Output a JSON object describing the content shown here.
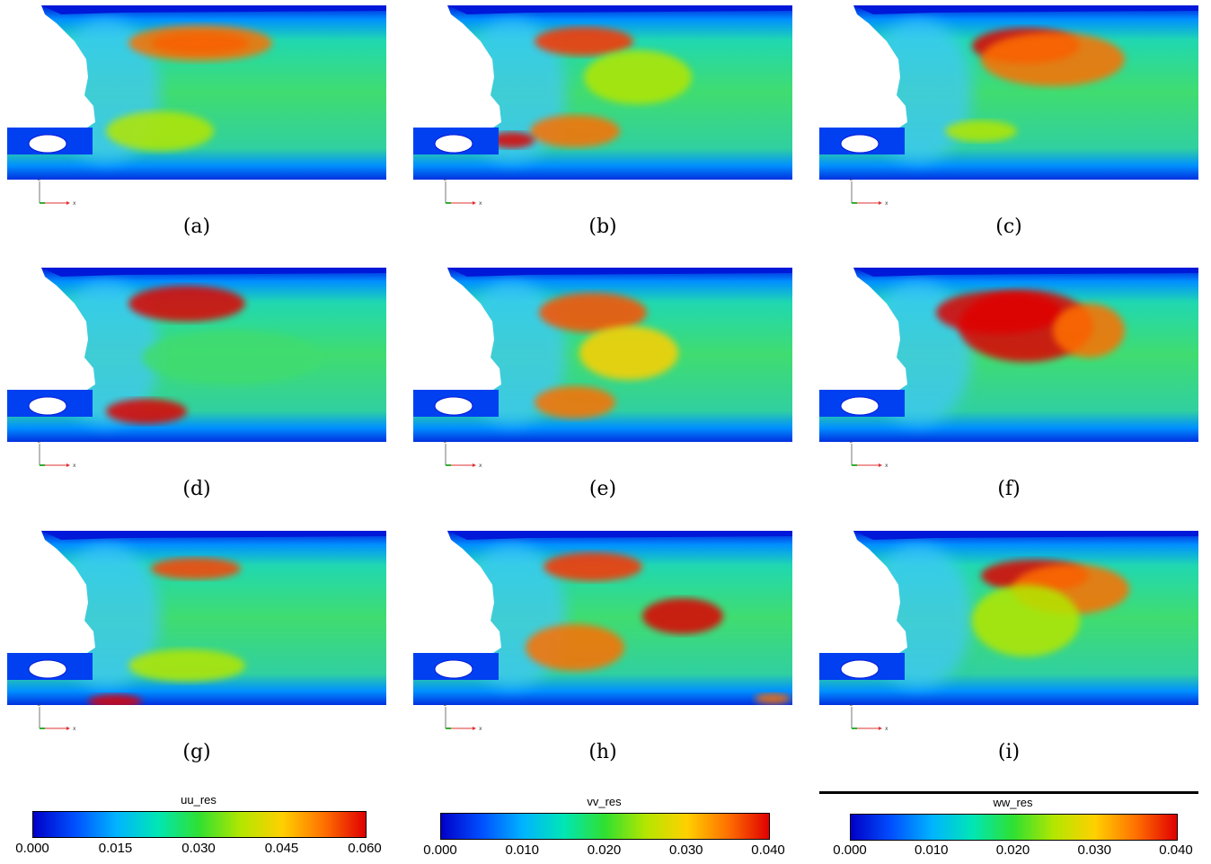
{
  "panels": [
    {
      "id": "a",
      "caption": "(a)"
    },
    {
      "id": "b",
      "caption": "(b)"
    },
    {
      "id": "c",
      "caption": "(c)"
    },
    {
      "id": "d",
      "caption": "(d)"
    },
    {
      "id": "e",
      "caption": "(e)"
    },
    {
      "id": "f",
      "caption": "(f)"
    },
    {
      "id": "g",
      "caption": "(g)"
    },
    {
      "id": "h",
      "caption": "(h)"
    },
    {
      "id": "i",
      "caption": "(i)"
    }
  ],
  "axes": {
    "x_label": "x",
    "z_label": "z"
  },
  "colorbars": [
    {
      "title": "uu_res",
      "ticks": [
        "0.000",
        "0.015",
        "0.030",
        "0.045",
        "0.060"
      ]
    },
    {
      "title": "vv_res",
      "ticks": [
        "0.000",
        "0.010",
        "0.020",
        "0.030",
        "0.040"
      ]
    },
    {
      "title": "ww_res",
      "ticks": [
        "0.000",
        "0.010",
        "0.020",
        "0.030",
        "0.040"
      ]
    }
  ],
  "colormap": [
    "#0000c8",
    "#0050ff",
    "#00b4ff",
    "#00e6b4",
    "#30e030",
    "#b4e600",
    "#ffd000",
    "#ff7000",
    "#e00000"
  ]
}
